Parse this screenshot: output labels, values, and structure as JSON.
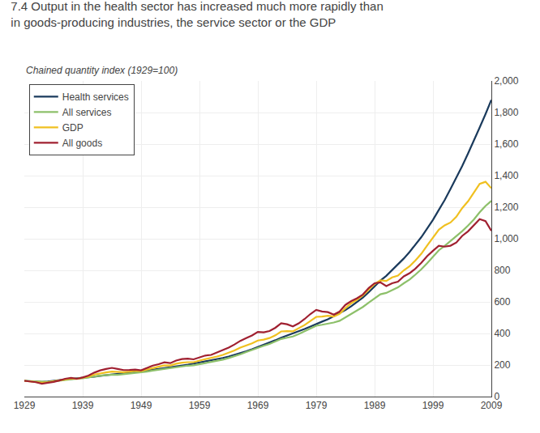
{
  "chart_data": {
    "type": "line",
    "title": "7.4 Output in the health sector has increased much more rapidly than\nin goods-producing industries, the service sector or the GDP",
    "subtitle": "Chained quantity index (1929=100)",
    "x": [
      1929,
      1930,
      1931,
      1932,
      1933,
      1934,
      1935,
      1936,
      1937,
      1938,
      1939,
      1940,
      1941,
      1942,
      1943,
      1944,
      1945,
      1946,
      1947,
      1948,
      1949,
      1950,
      1951,
      1952,
      1953,
      1954,
      1955,
      1956,
      1957,
      1958,
      1959,
      1960,
      1961,
      1962,
      1963,
      1964,
      1965,
      1966,
      1967,
      1968,
      1969,
      1970,
      1971,
      1972,
      1973,
      1974,
      1975,
      1976,
      1977,
      1978,
      1979,
      1980,
      1981,
      1982,
      1983,
      1984,
      1985,
      1986,
      1987,
      1988,
      1989,
      1990,
      1991,
      1992,
      1993,
      1994,
      1995,
      1996,
      1997,
      1998,
      1999,
      2000,
      2001,
      2002,
      2003,
      2004,
      2005,
      2006,
      2007,
      2008,
      2009
    ],
    "series": [
      {
        "name": "Health services",
        "color": "#1a3a5c",
        "values": [
          100,
          98,
          97,
          93,
          96,
          99,
          103,
          108,
          112,
          115,
          118,
          121,
          126,
          131,
          136,
          141,
          145,
          148,
          152,
          156,
          160,
          165,
          170,
          175,
          180,
          185,
          190,
          196,
          202,
          209,
          216,
          222,
          229,
          237,
          245,
          254,
          264,
          275,
          287,
          300,
          314,
          325,
          340,
          357,
          373,
          386,
          399,
          413,
          428,
          444,
          461,
          475,
          490,
          508,
          527,
          548,
          572,
          598,
          628,
          662,
          700,
          735,
          765,
          800,
          835,
          875,
          917,
          963,
          1010,
          1065,
          1120,
          1183,
          1245,
          1315,
          1385,
          1460,
          1540,
          1620,
          1705,
          1790,
          1880
        ]
      },
      {
        "name": "All services",
        "color": "#8dc06a",
        "values": [
          100,
          98,
          96,
          92,
          93,
          97,
          101,
          107,
          112,
          113,
          116,
          120,
          127,
          133,
          137,
          139,
          138,
          142,
          147,
          151,
          153,
          158,
          165,
          170,
          178,
          181,
          188,
          193,
          196,
          198,
          205,
          212,
          218,
          227,
          234,
          244,
          255,
          268,
          282,
          296,
          312,
          322,
          333,
          347,
          365,
          373,
          381,
          396,
          413,
          431,
          449,
          455,
          462,
          469,
          480,
          502,
          523,
          545,
          568,
          596,
          623,
          648,
          657,
          675,
          692,
          718,
          742,
          773,
          806,
          845,
          886,
          927,
          955,
          986,
          1014,
          1048,
          1083,
          1122,
          1168,
          1208,
          1240
        ]
      },
      {
        "name": "GDP",
        "color": "#f0c020",
        "values": [
          100,
          97,
          94,
          88,
          90,
          96,
          102,
          110,
          115,
          112,
          118,
          127,
          140,
          148,
          153,
          158,
          155,
          155,
          158,
          163,
          162,
          172,
          182,
          189,
          198,
          197,
          208,
          215,
          218,
          218,
          228,
          237,
          242,
          254,
          264,
          277,
          292,
          310,
          322,
          337,
          355,
          361,
          371,
          388,
          413,
          415,
          413,
          431,
          453,
          479,
          505,
          507,
          512,
          507,
          524,
          560,
          591,
          614,
          642,
          678,
          713,
          737,
          733,
          755,
          766,
          800,
          826,
          863,
          905,
          957,
          1005,
          1057,
          1085,
          1103,
          1139,
          1194,
          1237,
          1293,
          1348,
          1361,
          1320
        ]
      },
      {
        "name": "All goods",
        "color": "#a02030",
        "values": [
          100,
          96,
          91,
          82,
          86,
          93,
          102,
          113,
          119,
          113,
          121,
          133,
          152,
          166,
          175,
          182,
          175,
          168,
          169,
          171,
          166,
          180,
          196,
          205,
          217,
          212,
          228,
          238,
          240,
          236,
          250,
          260,
          264,
          280,
          292,
          310,
          330,
          353,
          370,
          387,
          410,
          407,
          415,
          436,
          465,
          458,
          445,
          464,
          491,
          523,
          549,
          539,
          535,
          519,
          539,
          581,
          605,
          623,
          647,
          688,
          718,
          724,
          700,
          718,
          728,
          762,
          782,
          811,
          847,
          890,
          924,
          956,
          950,
          956,
          976,
          1018,
          1047,
          1086,
          1124,
          1112,
          1050
        ]
      }
    ],
    "xlim": [
      1929,
      2009
    ],
    "xticks": [
      1929,
      1939,
      1949,
      1959,
      1969,
      1979,
      1989,
      1999,
      2009
    ],
    "ylim": [
      0,
      2000
    ],
    "yticks": [
      0,
      200,
      400,
      600,
      800,
      {
        "value": 1000,
        "label": "1,000"
      },
      {
        "value": 1200,
        "label": "1,200"
      },
      {
        "value": 1400,
        "label": "1,400"
      },
      {
        "value": 1600,
        "label": "1,600"
      },
      {
        "value": 1800,
        "label": "1,800"
      },
      {
        "value": 2000,
        "label": "2,000"
      }
    ],
    "grid": true,
    "legend": "upper left"
  }
}
